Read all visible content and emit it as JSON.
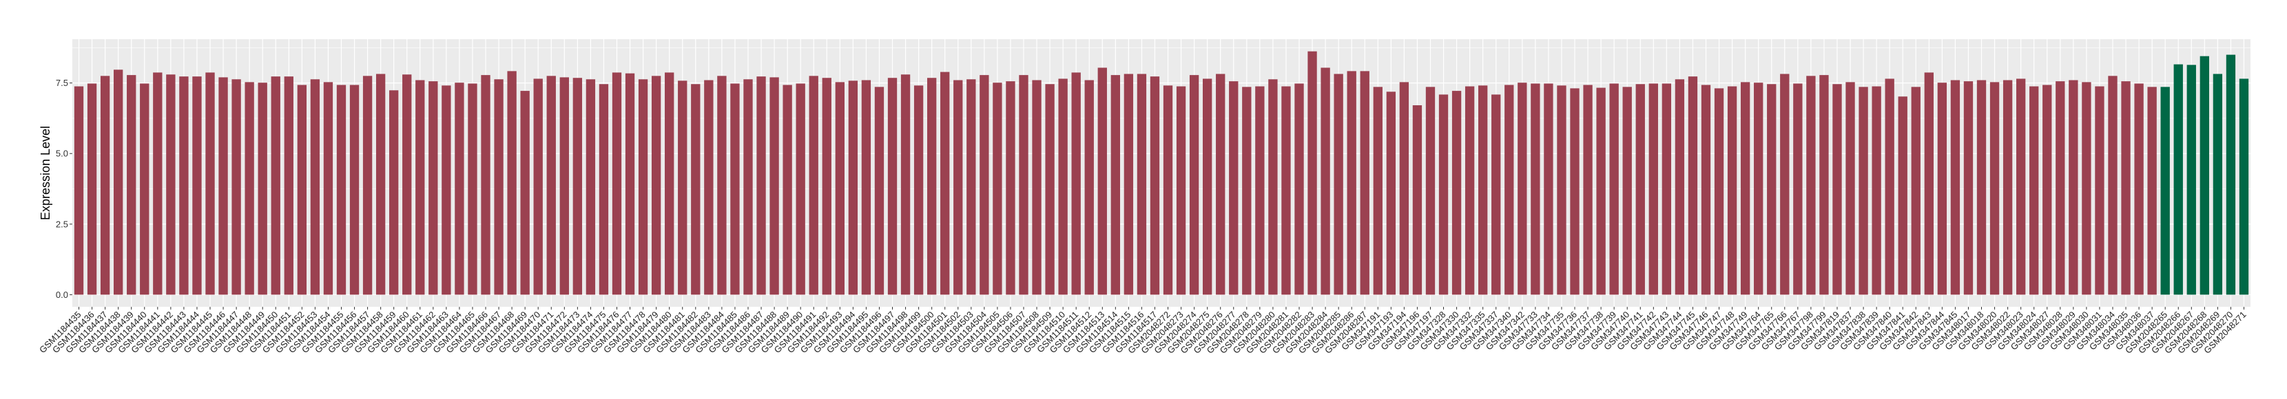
{
  "chart_data": {
    "type": "bar",
    "title": "",
    "xlabel": "",
    "ylabel": "Expression Level",
    "ylim": [
      -0.43,
      9.05
    ],
    "yticks": [
      "0.0",
      "2.5",
      "5.0",
      "7.5"
    ],
    "ytick_values": [
      0,
      2.5,
      5,
      7.5
    ],
    "grid": true,
    "legend": "none",
    "colors": {
      "default": "#9B4150",
      "highlight": "#006846",
      "panel": "#EBEBEB",
      "grid": "#FFFFFF"
    },
    "highlighted": [
      "GSM2048265",
      "GSM2048266",
      "GSM2048267",
      "GSM2048268",
      "GSM2048269",
      "GSM2048270",
      "GSM2048271"
    ],
    "categories": [
      "GSM1184435",
      "GSM1184436",
      "GSM1184437",
      "GSM1184438",
      "GSM1184439",
      "GSM1184440",
      "GSM1184441",
      "GSM1184442",
      "GSM1184443",
      "GSM1184444",
      "GSM1184445",
      "GSM1184446",
      "GSM1184447",
      "GSM1184448",
      "GSM1184449",
      "GSM1184450",
      "GSM1184451",
      "GSM1184452",
      "GSM1184453",
      "GSM1184454",
      "GSM1184455",
      "GSM1184456",
      "GSM1184457",
      "GSM1184458",
      "GSM1184459",
      "GSM1184460",
      "GSM1184461",
      "GSM1184462",
      "GSM1184463",
      "GSM1184464",
      "GSM1184465",
      "GSM1184466",
      "GSM1184467",
      "GSM1184468",
      "GSM1184469",
      "GSM1184470",
      "GSM1184471",
      "GSM1184472",
      "GSM1184473",
      "GSM1184474",
      "GSM1184475",
      "GSM1184476",
      "GSM1184477",
      "GSM1184478",
      "GSM1184479",
      "GSM1184480",
      "GSM1184481",
      "GSM1184482",
      "GSM1184483",
      "GSM1184484",
      "GSM1184485",
      "GSM1184486",
      "GSM1184487",
      "GSM1184488",
      "GSM1184489",
      "GSM1184490",
      "GSM1184491",
      "GSM1184492",
      "GSM1184493",
      "GSM1184494",
      "GSM1184495",
      "GSM1184496",
      "GSM1184497",
      "GSM1184498",
      "GSM1184499",
      "GSM1184500",
      "GSM1184501",
      "GSM1184502",
      "GSM1184503",
      "GSM1184504",
      "GSM1184505",
      "GSM1184506",
      "GSM1184507",
      "GSM1184508",
      "GSM1184509",
      "GSM1184510",
      "GSM1184511",
      "GSM1184512",
      "GSM1184513",
      "GSM1184514",
      "GSM1184515",
      "GSM1184516",
      "GSM1184517",
      "GSM2048272",
      "GSM2048273",
      "GSM2048274",
      "GSM2048275",
      "GSM2048276",
      "GSM2048277",
      "GSM2048278",
      "GSM2048279",
      "GSM2048280",
      "GSM2048281",
      "GSM2048282",
      "GSM2048283",
      "GSM2048284",
      "GSM2048285",
      "GSM2048286",
      "GSM2048287",
      "GSM347191",
      "GSM347193",
      "GSM347194",
      "GSM347196",
      "GSM347197",
      "GSM347328",
      "GSM347330",
      "GSM347332",
      "GSM347335",
      "GSM347337",
      "GSM347340",
      "GSM347342",
      "GSM347733",
      "GSM347734",
      "GSM347735",
      "GSM347736",
      "GSM347737",
      "GSM347738",
      "GSM347739",
      "GSM347740",
      "GSM347741",
      "GSM347742",
      "GSM347743",
      "GSM347744",
      "GSM347745",
      "GSM347746",
      "GSM347747",
      "GSM347748",
      "GSM347749",
      "GSM347764",
      "GSM347765",
      "GSM347766",
      "GSM347767",
      "GSM347798",
      "GSM347799",
      "GSM347819",
      "GSM347837",
      "GSM347838",
      "GSM347839",
      "GSM347840",
      "GSM347841",
      "GSM347842",
      "GSM347843",
      "GSM347844",
      "GSM347845",
      "GSM348017",
      "GSM348018",
      "GSM348020",
      "GSM348022",
      "GSM348023",
      "GSM348024",
      "GSM348027",
      "GSM348028",
      "GSM348029",
      "GSM348030",
      "GSM348031",
      "GSM348034",
      "GSM348035",
      "GSM348036",
      "GSM348037",
      "GSM2048265",
      "GSM2048266",
      "GSM2048267",
      "GSM2048268",
      "GSM2048269",
      "GSM2048270",
      "GSM2048271"
    ],
    "values": [
      7.38,
      7.48,
      7.75,
      7.97,
      7.78,
      7.48,
      7.87,
      7.8,
      7.73,
      7.73,
      7.87,
      7.7,
      7.63,
      7.53,
      7.51,
      7.73,
      7.73,
      7.43,
      7.63,
      7.53,
      7.43,
      7.43,
      7.75,
      7.82,
      7.24,
      7.8,
      7.6,
      7.56,
      7.41,
      7.51,
      7.48,
      7.78,
      7.63,
      7.92,
      7.22,
      7.65,
      7.75,
      7.7,
      7.68,
      7.63,
      7.46,
      7.87,
      7.84,
      7.63,
      7.75,
      7.87,
      7.58,
      7.46,
      7.6,
      7.75,
      7.48,
      7.63,
      7.73,
      7.7,
      7.43,
      7.48,
      7.75,
      7.68,
      7.53,
      7.58,
      7.6,
      7.36,
      7.68,
      7.8,
      7.41,
      7.68,
      7.89,
      7.6,
      7.63,
      7.78,
      7.51,
      7.56,
      7.78,
      7.6,
      7.46,
      7.65,
      7.87,
      7.6,
      8.04,
      7.78,
      7.82,
      7.82,
      7.73,
      7.41,
      7.38,
      7.78,
      7.65,
      7.82,
      7.56,
      7.36,
      7.38,
      7.63,
      7.38,
      7.48,
      8.62,
      8.04,
      7.82,
      7.92,
      7.92,
      7.36,
      7.19,
      7.53,
      6.71,
      7.36,
      7.09,
      7.22,
      7.38,
      7.41,
      7.09,
      7.43,
      7.51,
      7.48,
      7.48,
      7.41,
      7.31,
      7.43,
      7.33,
      7.48,
      7.36,
      7.46,
      7.48,
      7.48,
      7.63,
      7.73,
      7.43,
      7.31,
      7.38,
      7.53,
      7.51,
      7.46,
      7.82,
      7.48,
      7.75,
      7.78,
      7.46,
      7.53,
      7.36,
      7.38,
      7.65,
      7.02,
      7.36,
      7.87,
      7.51,
      7.6,
      7.56,
      7.6,
      7.53,
      7.6,
      7.65,
      7.38,
      7.43,
      7.56,
      7.6,
      7.53,
      7.38,
      7.75,
      7.56,
      7.48,
      7.36,
      7.36,
      8.16,
      8.14,
      8.45,
      7.82,
      8.5,
      7.65
    ]
  }
}
